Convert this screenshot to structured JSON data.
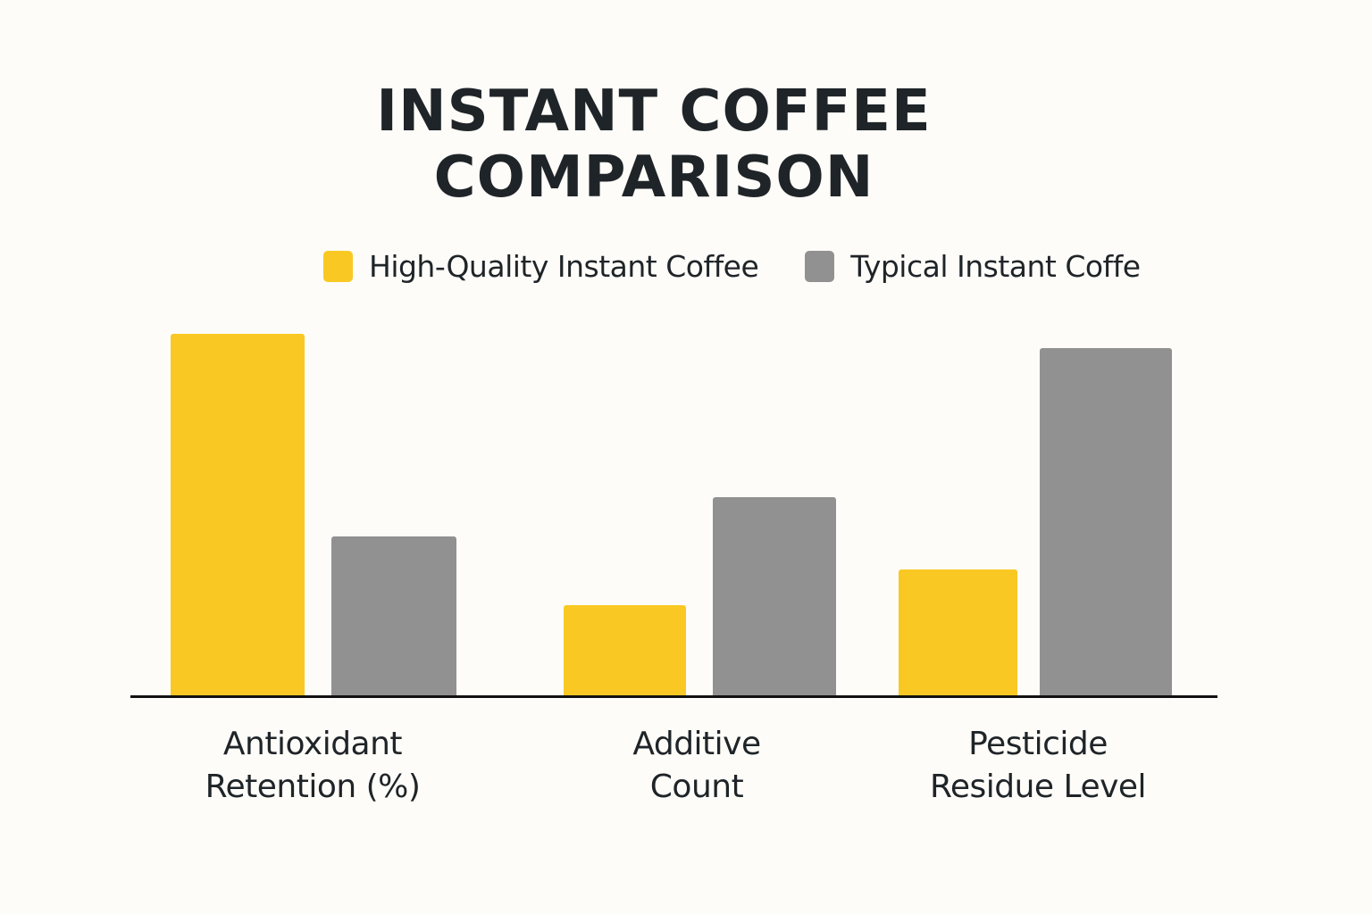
{
  "title_line1": "INSTANT COFFEE",
  "title_line2": "COMPARISON",
  "legend": [
    {
      "label": "High-Quality Instant Coffee",
      "color": "#f9c823"
    },
    {
      "label": "Typical Instant Coffe",
      "color": "#919191"
    }
  ],
  "categories": [
    {
      "line1": "Antioxidant",
      "line2": "Retention (%)"
    },
    {
      "line1": "Additive",
      "line2": "Count"
    },
    {
      "line1": "Pesticide",
      "line2": "Residue Level"
    }
  ],
  "chart_data": {
    "type": "bar",
    "title": "INSTANT COFFEE COMPARISON",
    "categories": [
      "Antioxidant Retention (%)",
      "Additive Count",
      "Pesticide Residue Level"
    ],
    "series": [
      {
        "name": "High-Quality Instant Coffee",
        "color": "#f9c823",
        "values": [
          100,
          25,
          35
        ]
      },
      {
        "name": "Typical Instant Coffe",
        "color": "#919191",
        "values": [
          44,
          55,
          96
        ]
      }
    ],
    "xlabel": "",
    "ylabel": "",
    "ylim": [
      0,
      100
    ],
    "grid": false,
    "legend_position": "top",
    "note": "No axis ticks shown; values are relative bar heights scaled to tallest bar = 100"
  }
}
